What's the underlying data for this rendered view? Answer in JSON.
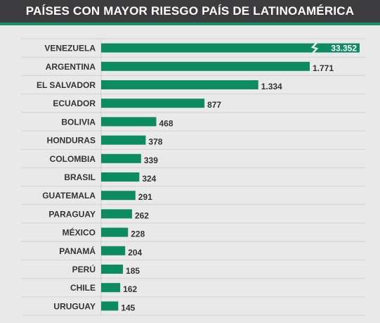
{
  "title": "PAÍSES CON MAYOR RIESGO PAÍS DE LATINOAMÉRICA",
  "colors": {
    "bar": "#0d8b62",
    "background": "#e9e9e9",
    "title_bar": "#3c3c3e",
    "accent": "#13906a",
    "label_text": "#333333",
    "value_text": "#333333",
    "inside_value_text": "#ffffff"
  },
  "chart_data": {
    "type": "bar",
    "orientation": "horizontal",
    "title": "PAÍSES CON MAYOR RIESGO PAÍS DE LATINOAMÉRICA",
    "xlabel": "",
    "ylabel": "",
    "grid": "horizontal separators",
    "axis_break": {
      "category": "VENEZUELA",
      "note": "bar truncated with break symbol"
    },
    "categories": [
      "VENEZUELA",
      "ARGENTINA",
      "EL SALVADOR",
      "ECUADOR",
      "BOLIVIA",
      "HONDURAS",
      "COLOMBIA",
      "BRASIL",
      "GUATEMALA",
      "PARAGUAY",
      "MÉXICO",
      "PANAMÁ",
      "PERÚ",
      "CHILE",
      "URUGUAY"
    ],
    "values": [
      33352,
      1771,
      1334,
      877,
      468,
      378,
      339,
      324,
      291,
      262,
      228,
      204,
      185,
      162,
      145
    ],
    "value_labels": [
      "33.352",
      "1.771",
      "1.334",
      "877",
      "468",
      "378",
      "339",
      "324",
      "291",
      "262",
      "228",
      "204",
      "185",
      "162",
      "145"
    ]
  }
}
